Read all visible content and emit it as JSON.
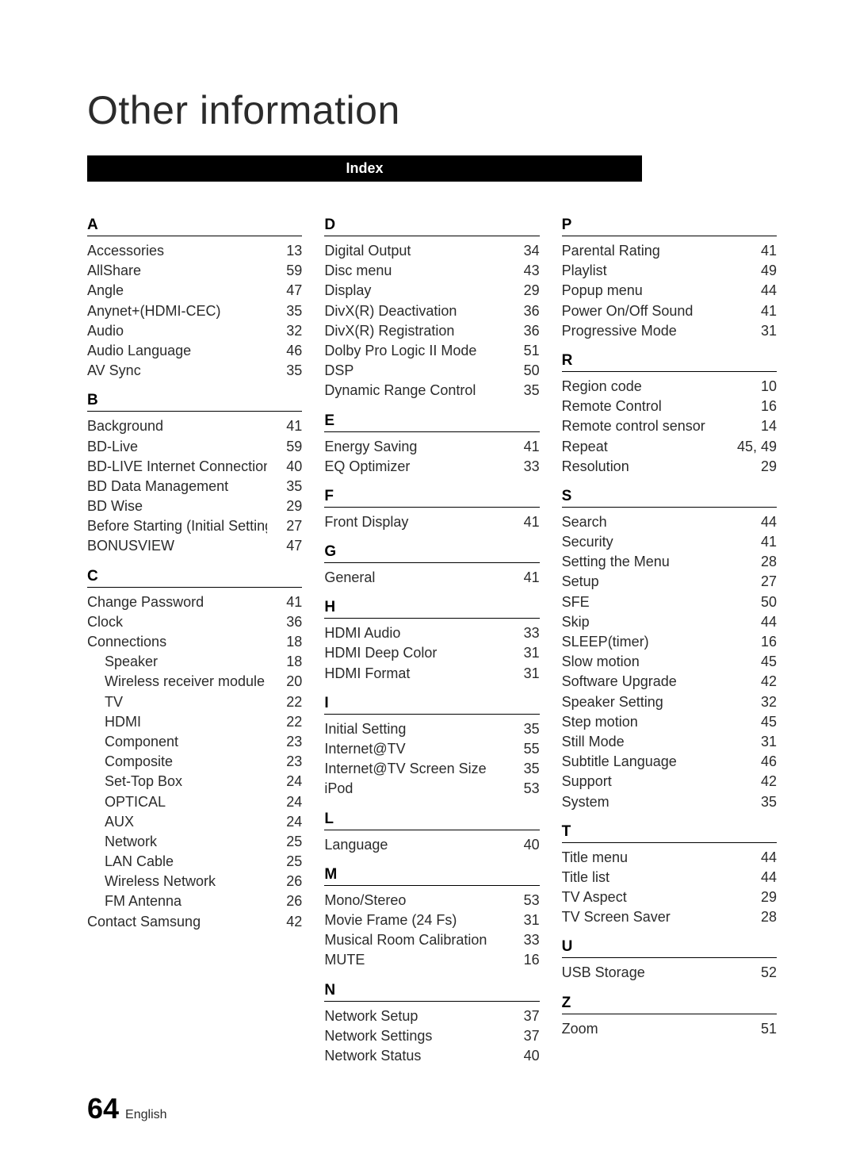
{
  "title": "Other information",
  "index_bar_label": "Index",
  "page_number": "64",
  "language_label": "English",
  "columns": [
    [
      {
        "letter": "A",
        "entries": [
          {
            "label": "Accessories",
            "page": "13"
          },
          {
            "label": "AllShare",
            "page": "59"
          },
          {
            "label": "Angle",
            "page": "47"
          },
          {
            "label": "Anynet+(HDMI-CEC)",
            "page": "35"
          },
          {
            "label": "Audio",
            "page": "32"
          },
          {
            "label": "Audio Language",
            "page": "46"
          },
          {
            "label": "AV Sync",
            "page": "35"
          }
        ]
      },
      {
        "letter": "B",
        "entries": [
          {
            "label": "Background",
            "page": "41"
          },
          {
            "label": "BD-Live",
            "page": "59"
          },
          {
            "label": "BD-LIVE Internet Connection",
            "page": "40"
          },
          {
            "label": "BD Data Management",
            "page": "35"
          },
          {
            "label": "BD Wise",
            "page": "29"
          },
          {
            "label": "Before Starting (Initial Setting)",
            "page": "27"
          },
          {
            "label": "BONUSVIEW",
            "page": "47"
          }
        ]
      },
      {
        "letter": "C",
        "entries": [
          {
            "label": "Change Password",
            "page": "41"
          },
          {
            "label": "Clock",
            "page": "36"
          },
          {
            "label": "Connections",
            "page": "18"
          },
          {
            "label": "Speaker",
            "page": "18",
            "indent": true
          },
          {
            "label": "Wireless receiver module",
            "page": "20",
            "indent": true
          },
          {
            "label": "TV",
            "page": "22",
            "indent": true
          },
          {
            "label": "HDMI",
            "page": "22",
            "indent": true
          },
          {
            "label": "Component",
            "page": "23",
            "indent": true
          },
          {
            "label": "Composite",
            "page": "23",
            "indent": true
          },
          {
            "label": "Set-Top Box",
            "page": "24",
            "indent": true
          },
          {
            "label": "OPTICAL",
            "page": "24",
            "indent": true
          },
          {
            "label": "AUX",
            "page": "24",
            "indent": true
          },
          {
            "label": "Network",
            "page": "25",
            "indent": true
          },
          {
            "label": "LAN Cable",
            "page": "25",
            "indent": true
          },
          {
            "label": "Wireless Network",
            "page": "26",
            "indent": true
          },
          {
            "label": "FM Antenna",
            "page": "26",
            "indent": true
          },
          {
            "label": "Contact Samsung",
            "page": "42"
          }
        ]
      }
    ],
    [
      {
        "letter": "D",
        "entries": [
          {
            "label": "Digital Output",
            "page": "34"
          },
          {
            "label": "Disc menu",
            "page": "43"
          },
          {
            "label": "Display",
            "page": "29"
          },
          {
            "label": "DivX(R) Deactivation",
            "page": "36"
          },
          {
            "label": "DivX(R) Registration",
            "page": "36"
          },
          {
            "label": "Dolby Pro Logic II Mode",
            "page": "51"
          },
          {
            "label": "DSP",
            "page": "50"
          },
          {
            "label": "Dynamic Range Control",
            "page": "35"
          }
        ]
      },
      {
        "letter": "E",
        "entries": [
          {
            "label": "Energy Saving",
            "page": "41"
          },
          {
            "label": "EQ Optimizer",
            "page": "33"
          }
        ]
      },
      {
        "letter": "F",
        "entries": [
          {
            "label": "Front Display",
            "page": "41"
          }
        ]
      },
      {
        "letter": "G",
        "entries": [
          {
            "label": "General",
            "page": "41"
          }
        ]
      },
      {
        "letter": "H",
        "entries": [
          {
            "label": "HDMI Audio",
            "page": "33"
          },
          {
            "label": "HDMI Deep Color",
            "page": "31"
          },
          {
            "label": "HDMI Format",
            "page": "31"
          }
        ]
      },
      {
        "letter": "I",
        "entries": [
          {
            "label": "Initial Setting",
            "page": "35"
          },
          {
            "label": "Internet@TV",
            "page": "55"
          },
          {
            "label": "Internet@TV Screen Size",
            "page": "35"
          },
          {
            "label": "iPod",
            "page": "53"
          }
        ]
      },
      {
        "letter": "L",
        "entries": [
          {
            "label": "Language",
            "page": "40"
          }
        ]
      },
      {
        "letter": "M",
        "entries": [
          {
            "label": "Mono/Stereo",
            "page": "53"
          },
          {
            "label": "Movie Frame (24 Fs)",
            "page": "31"
          },
          {
            "label": "Musical Room Calibration",
            "page": "33"
          },
          {
            "label": "MUTE",
            "page": "16"
          }
        ]
      },
      {
        "letter": "N",
        "entries": [
          {
            "label": "Network Setup",
            "page": "37"
          },
          {
            "label": "Network Settings",
            "page": "37"
          },
          {
            "label": "Network Status",
            "page": "40"
          }
        ]
      }
    ],
    [
      {
        "letter": "P",
        "entries": [
          {
            "label": "Parental Rating",
            "page": "41"
          },
          {
            "label": "Playlist",
            "page": "49"
          },
          {
            "label": "Popup menu",
            "page": "44"
          },
          {
            "label": "Power On/Off Sound",
            "page": "41"
          },
          {
            "label": "Progressive Mode",
            "page": "31"
          }
        ]
      },
      {
        "letter": "R",
        "entries": [
          {
            "label": "Region code",
            "page": "10"
          },
          {
            "label": "Remote Control",
            "page": "16"
          },
          {
            "label": "Remote control sensor",
            "page": "14"
          },
          {
            "label": "Repeat",
            "page": "45, 49"
          },
          {
            "label": "Resolution",
            "page": "29"
          }
        ]
      },
      {
        "letter": "S",
        "entries": [
          {
            "label": "Search",
            "page": "44"
          },
          {
            "label": "Security",
            "page": "41"
          },
          {
            "label": "Setting the Menu",
            "page": "28"
          },
          {
            "label": "Setup",
            "page": "27"
          },
          {
            "label": "SFE",
            "page": "50"
          },
          {
            "label": "Skip",
            "page": "44"
          },
          {
            "label": "SLEEP(timer)",
            "page": "16"
          },
          {
            "label": "Slow motion",
            "page": "45"
          },
          {
            "label": "Software Upgrade",
            "page": "42"
          },
          {
            "label": "Speaker Setting",
            "page": "32"
          },
          {
            "label": "Step motion",
            "page": "45"
          },
          {
            "label": "Still Mode",
            "page": "31"
          },
          {
            "label": "Subtitle Language",
            "page": "46"
          },
          {
            "label": "Support",
            "page": "42"
          },
          {
            "label": "System",
            "page": "35"
          }
        ]
      },
      {
        "letter": "T",
        "entries": [
          {
            "label": "Title menu",
            "page": "44"
          },
          {
            "label": "Title list",
            "page": "44"
          },
          {
            "label": "TV Aspect",
            "page": "29"
          },
          {
            "label": "TV Screen Saver",
            "page": "28"
          }
        ]
      },
      {
        "letter": "U",
        "entries": [
          {
            "label": "USB Storage",
            "page": "52"
          }
        ]
      },
      {
        "letter": "Z",
        "entries": [
          {
            "label": "Zoom",
            "page": "51"
          }
        ]
      }
    ]
  ]
}
